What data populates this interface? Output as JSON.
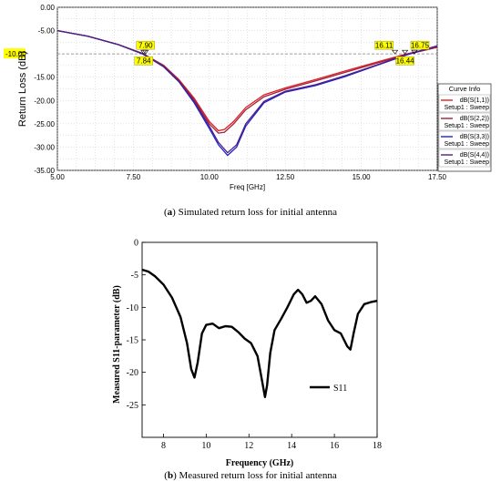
{
  "chart_data": [
    {
      "type": "line",
      "xlabel": "Freq [GHz]",
      "ylabel": "Return Loss (dB)",
      "xlim": [
        5.0,
        17.5
      ],
      "ylim": [
        -35.0,
        0.0
      ],
      "xticks": [
        "5.00",
        "7.50",
        "10.00",
        "12.50",
        "15.00",
        "17.50"
      ],
      "yticks": [
        "0.00",
        "-5.00",
        "-10.00",
        "-15.00",
        "-20.00",
        "-25.00",
        "-30.00",
        "-35.00"
      ],
      "grid": true,
      "reference_line": {
        "y": -10.0,
        "label": "-10.00"
      },
      "legend": {
        "title": "Curve Info",
        "placement": "right",
        "entries": [
          {
            "name": "dB(S(1,1))",
            "setup": "Setup1 : Sweep",
            "color": "#e02020"
          },
          {
            "name": "dB(S(2,2))",
            "setup": "Setup1 : Sweep",
            "color": "#a02040"
          },
          {
            "name": "dB(S(3,3))",
            "setup": "Setup1 : Sweep",
            "color": "#2020d0"
          },
          {
            "name": "dB(S(4,4))",
            "setup": "Setup1 : Sweep",
            "color": "#502080"
          }
        ]
      },
      "markers": [
        {
          "label": "7.90",
          "x": 7.9,
          "y": -10.0
        },
        {
          "label": "7.84",
          "x": 7.84,
          "y": -10.0
        },
        {
          "label": "16.11",
          "x": 16.11,
          "y": -10.0
        },
        {
          "label": "16.75",
          "x": 16.75,
          "y": -10.0
        },
        {
          "label": "16.44",
          "x": 16.44,
          "y": -10.0
        }
      ],
      "series": [
        {
          "name": "dB(S(1,1))",
          "color": "#e02020",
          "x": [
            5.0,
            6.0,
            7.0,
            7.8,
            8.5,
            9.0,
            9.5,
            10.0,
            10.3,
            10.5,
            10.8,
            11.2,
            11.8,
            12.5,
            13.5,
            14.5,
            15.5,
            16.5,
            17.5
          ],
          "y": [
            -5.0,
            -6.2,
            -8.0,
            -9.9,
            -12.5,
            -15.5,
            -19.5,
            -24.5,
            -26.5,
            -26.2,
            -24.5,
            -21.5,
            -18.8,
            -17.3,
            -15.5,
            -13.6,
            -11.8,
            -10.0,
            -8.5
          ]
        },
        {
          "name": "dB(S(2,2))",
          "color": "#a02040",
          "x": [
            5.0,
            6.0,
            7.0,
            7.8,
            8.5,
            9.0,
            9.5,
            10.0,
            10.3,
            10.5,
            10.8,
            11.2,
            11.8,
            12.5,
            13.5,
            14.5,
            15.5,
            16.5,
            17.5
          ],
          "y": [
            -5.0,
            -6.2,
            -8.0,
            -9.9,
            -12.5,
            -15.6,
            -19.8,
            -25.0,
            -27.0,
            -26.8,
            -25.0,
            -22.0,
            -19.2,
            -17.6,
            -15.8,
            -13.9,
            -12.0,
            -10.1,
            -8.6
          ]
        },
        {
          "name": "dB(S(3,3))",
          "color": "#2020d0",
          "x": [
            5.0,
            6.0,
            7.0,
            7.8,
            8.5,
            9.0,
            9.5,
            10.0,
            10.3,
            10.6,
            10.9,
            11.2,
            11.8,
            12.5,
            13.5,
            14.5,
            15.5,
            16.5,
            17.5
          ],
          "y": [
            -5.0,
            -6.2,
            -8.0,
            -10.0,
            -12.8,
            -16.0,
            -20.5,
            -26.0,
            -29.5,
            -31.8,
            -30.0,
            -25.5,
            -20.5,
            -18.2,
            -16.8,
            -14.8,
            -12.5,
            -10.2,
            -8.3
          ]
        },
        {
          "name": "dB(S(4,4))",
          "color": "#502080",
          "x": [
            5.0,
            6.0,
            7.0,
            7.8,
            8.5,
            9.0,
            9.5,
            10.0,
            10.3,
            10.6,
            10.9,
            11.2,
            11.8,
            12.5,
            13.5,
            14.5,
            15.5,
            16.5,
            17.5
          ],
          "y": [
            -5.0,
            -6.2,
            -8.0,
            -10.0,
            -12.7,
            -15.9,
            -20.2,
            -25.5,
            -29.0,
            -31.2,
            -29.5,
            -25.0,
            -20.2,
            -18.0,
            -16.6,
            -14.6,
            -12.4,
            -10.1,
            -8.3
          ]
        }
      ]
    },
    {
      "type": "line",
      "xlabel": "Frequency (GHz)",
      "ylabel": "Measured S11-parameter (dB)",
      "xlim": [
        7,
        18
      ],
      "ylim": [
        -30,
        0
      ],
      "xticks": [
        "8",
        "10",
        "12",
        "14",
        "16",
        "18"
      ],
      "yticks": [
        "0",
        "-5",
        "-10",
        "-15",
        "-20",
        "-25"
      ],
      "grid": false,
      "legend": {
        "placement": "lower-right",
        "entries": [
          {
            "name": "S11",
            "color": "#000000"
          }
        ]
      },
      "series": [
        {
          "name": "S11",
          "color": "#000000",
          "x": [
            7.0,
            7.3,
            7.6,
            8.0,
            8.4,
            8.8,
            9.1,
            9.3,
            9.45,
            9.6,
            9.8,
            10.0,
            10.3,
            10.6,
            10.9,
            11.2,
            11.5,
            11.8,
            12.1,
            12.4,
            12.6,
            12.75,
            12.85,
            13.0,
            13.2,
            13.5,
            13.8,
            14.1,
            14.3,
            14.5,
            14.7,
            14.9,
            15.1,
            15.4,
            15.7,
            16.0,
            16.3,
            16.6,
            16.75,
            16.9,
            17.1,
            17.4,
            17.7,
            18.0
          ],
          "y": [
            -4.2,
            -4.5,
            -5.2,
            -6.5,
            -8.5,
            -11.5,
            -15.5,
            -19.5,
            -20.8,
            -18.5,
            -14.0,
            -12.7,
            -12.5,
            -13.2,
            -12.9,
            -13.0,
            -13.8,
            -14.8,
            -15.5,
            -17.5,
            -21.0,
            -23.8,
            -22.0,
            -17.0,
            -13.5,
            -11.8,
            -10.0,
            -8.0,
            -7.3,
            -8.0,
            -9.3,
            -9.0,
            -8.3,
            -9.5,
            -12.0,
            -13.5,
            -14.0,
            -16.0,
            -16.5,
            -14.0,
            -11.0,
            -9.5,
            -9.2,
            -9.0
          ]
        }
      ]
    }
  ],
  "captions": {
    "a_letter": "a",
    "a_text": "Simulated return loss for initial antenna",
    "b_letter": "b",
    "b_text": "Measured return loss for initial antenna"
  }
}
